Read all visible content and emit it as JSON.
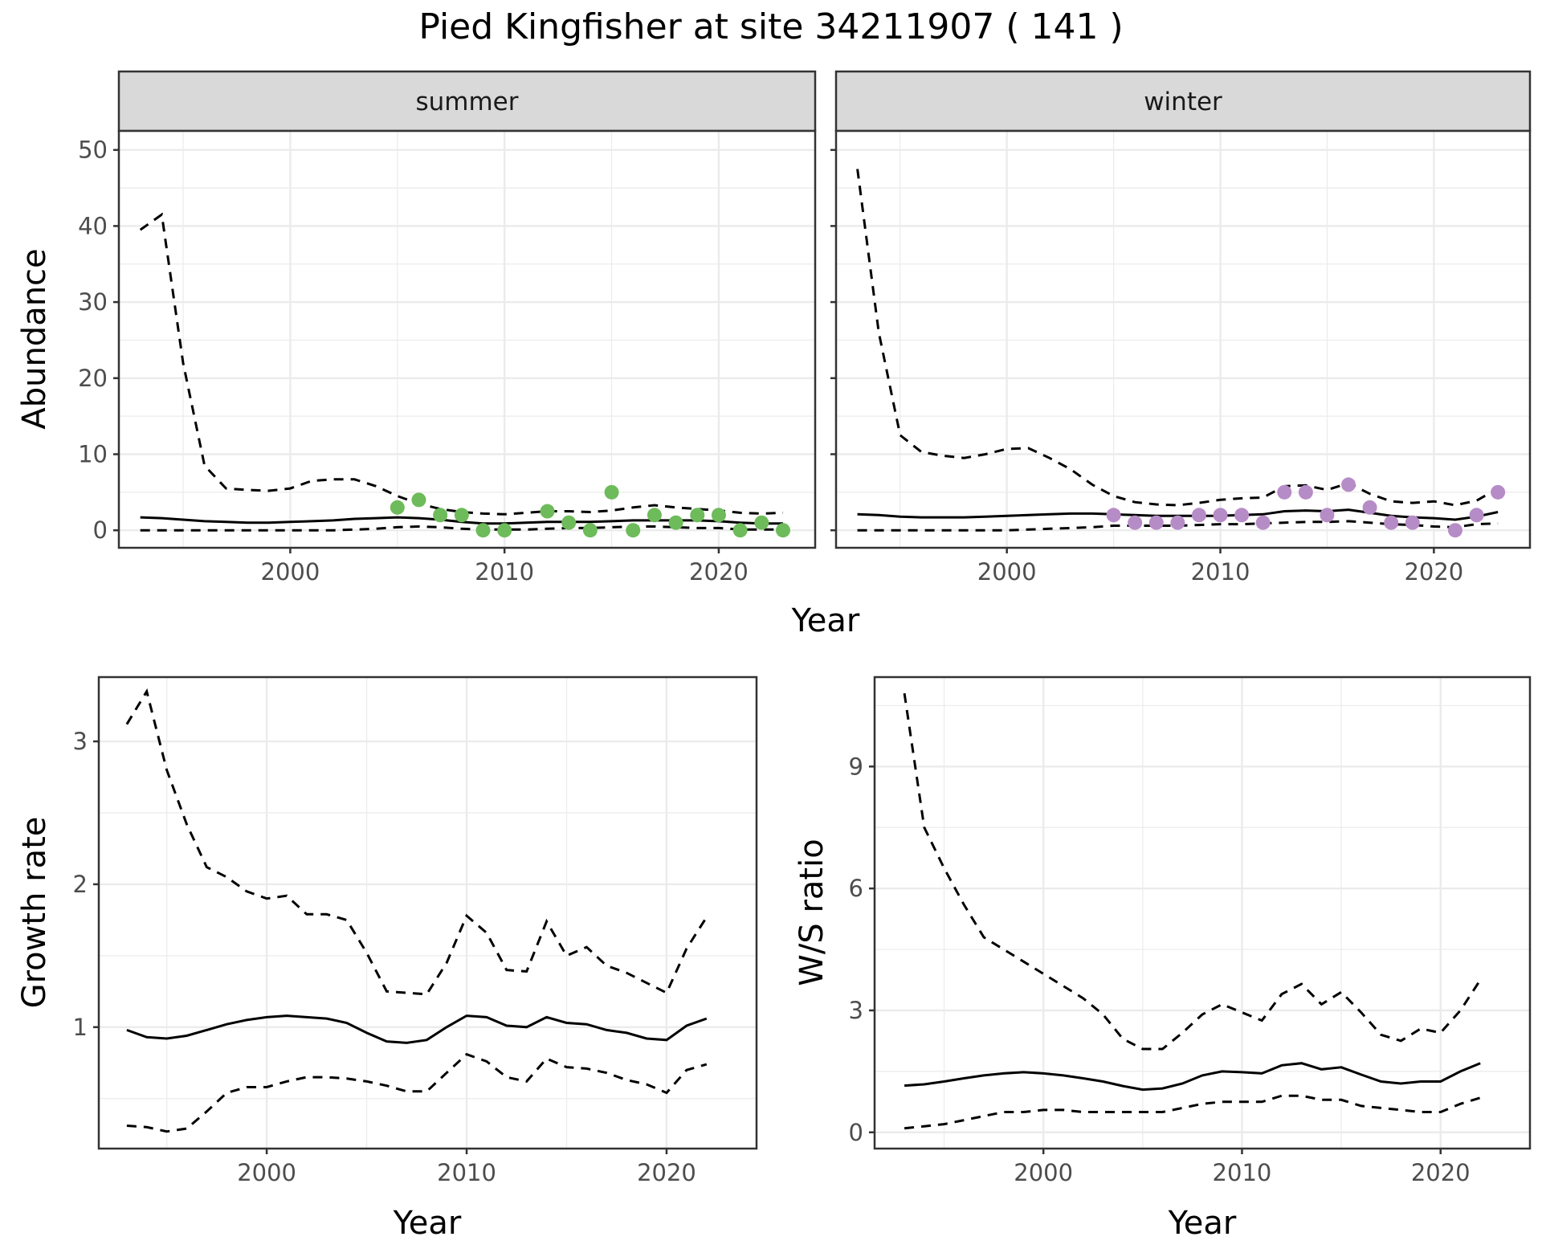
{
  "title": "Pied Kingfisher at site 34211907 ( 141 )",
  "colors": {
    "summer_points": "#6dbb5a",
    "winter_points": "#b68cc7",
    "line": "#000000",
    "grid_major": "#ebebeb",
    "strip_bg": "#d9d9d9"
  },
  "chart_data": [
    {
      "type": "line",
      "facet": "summer",
      "xlabel": "Year",
      "ylabel": "Abundance",
      "xlim": [
        1992,
        2024.5
      ],
      "ylim": [
        -2.3,
        52.5
      ],
      "xticks": [
        2000,
        2010,
        2020
      ],
      "yticks": [
        0,
        10,
        20,
        30,
        40,
        50
      ],
      "xtick_labels": [
        "2000",
        "2010",
        "2020"
      ],
      "ytick_labels": [
        "0",
        "10",
        "20",
        "30",
        "40",
        "50"
      ],
      "grid": true,
      "x": [
        1993,
        1994,
        1995,
        1996,
        1997,
        1998,
        1999,
        2000,
        2001,
        2002,
        2003,
        2004,
        2005,
        2006,
        2007,
        2008,
        2009,
        2010,
        2011,
        2012,
        2013,
        2014,
        2015,
        2016,
        2017,
        2018,
        2019,
        2020,
        2021,
        2022,
        2023
      ],
      "estimate": [
        1.7,
        1.6,
        1.4,
        1.2,
        1.1,
        1.0,
        1.0,
        1.1,
        1.2,
        1.3,
        1.5,
        1.6,
        1.7,
        1.6,
        1.4,
        1.1,
        0.9,
        0.9,
        1.0,
        1.1,
        1.1,
        1.1,
        1.2,
        1.3,
        1.3,
        1.3,
        1.3,
        1.2,
        1.0,
        0.9,
        0.9
      ],
      "upper": [
        39.5,
        41.5,
        22,
        8.5,
        5.5,
        5.3,
        5.2,
        5.5,
        6.5,
        6.7,
        6.7,
        5.8,
        4.5,
        3.5,
        2.8,
        2.4,
        2.2,
        2.1,
        2.3,
        2.5,
        2.5,
        2.4,
        2.6,
        3.0,
        3.3,
        3.0,
        2.8,
        2.6,
        2.3,
        2.2,
        2.3
      ],
      "lower": [
        0,
        0,
        0,
        0,
        0,
        0,
        0,
        0,
        0,
        0,
        0.1,
        0.2,
        0.4,
        0.5,
        0.4,
        0.2,
        0.1,
        0.1,
        0.1,
        0.2,
        0.3,
        0.3,
        0.4,
        0.5,
        0.5,
        0.4,
        0.3,
        0.3,
        0.1,
        0.1,
        0.1
      ],
      "observed": {
        "x": [
          2005,
          2006,
          2007,
          2008,
          2009,
          2010,
          2012,
          2013,
          2014,
          2015,
          2016,
          2017,
          2018,
          2019,
          2020,
          2021,
          2022,
          2023
        ],
        "y": [
          3,
          4,
          2,
          2,
          0,
          0,
          2.5,
          1,
          0,
          5,
          0,
          2,
          1,
          2,
          2,
          0,
          1,
          0
        ]
      }
    },
    {
      "type": "line",
      "facet": "winter",
      "xlabel": "Year",
      "ylabel": "Abundance",
      "xlim": [
        1992,
        2024.5
      ],
      "ylim": [
        -2.3,
        52.5
      ],
      "xticks": [
        2000,
        2010,
        2020
      ],
      "yticks": [
        0,
        10,
        20,
        30,
        40,
        50
      ],
      "xtick_labels": [
        "2000",
        "2010",
        "2020"
      ],
      "grid": true,
      "x": [
        1993,
        1994,
        1995,
        1996,
        1997,
        1998,
        1999,
        2000,
        2001,
        2002,
        2003,
        2004,
        2005,
        2006,
        2007,
        2008,
        2009,
        2010,
        2011,
        2012,
        2013,
        2014,
        2015,
        2016,
        2017,
        2018,
        2019,
        2020,
        2021,
        2022,
        2023
      ],
      "estimate": [
        2.1,
        2.0,
        1.8,
        1.7,
        1.7,
        1.7,
        1.8,
        1.9,
        2.0,
        2.1,
        2.2,
        2.2,
        2.1,
        2.0,
        1.9,
        1.9,
        1.9,
        1.9,
        2.0,
        2.1,
        2.5,
        2.6,
        2.5,
        2.7,
        2.3,
        1.9,
        1.7,
        1.6,
        1.4,
        1.8,
        2.4
      ],
      "upper": [
        47.5,
        26,
        12.5,
        10.3,
        9.8,
        9.5,
        10.0,
        10.7,
        10.8,
        9.5,
        8.0,
        6.0,
        4.5,
        3.7,
        3.4,
        3.3,
        3.6,
        4.0,
        4.2,
        4.3,
        5.8,
        5.9,
        5.3,
        6.2,
        4.8,
        3.8,
        3.6,
        3.8,
        3.3,
        3.9,
        5.5
      ],
      "lower": [
        0,
        0,
        0,
        0,
        0,
        0,
        0,
        0,
        0.1,
        0.2,
        0.3,
        0.4,
        0.6,
        0.6,
        0.6,
        0.6,
        0.7,
        0.8,
        0.8,
        0.9,
        1.0,
        1.1,
        1.1,
        1.2,
        1.0,
        0.8,
        0.7,
        0.5,
        0.4,
        0.8,
        0.9
      ],
      "observed": {
        "x": [
          2005,
          2006,
          2007,
          2008,
          2009,
          2010,
          2011,
          2012,
          2013,
          2014,
          2015,
          2016,
          2017,
          2018,
          2019,
          2021,
          2022,
          2023
        ],
        "y": [
          2,
          1,
          1,
          1,
          2,
          2,
          2,
          1,
          5,
          5,
          2,
          6,
          3,
          1,
          1,
          0,
          2,
          5
        ]
      }
    },
    {
      "type": "line",
      "xlabel": "Year",
      "ylabel": "Growth rate",
      "xlim": [
        1991.6,
        2024.5
      ],
      "ylim": [
        0.15,
        3.45
      ],
      "xticks": [
        2000,
        2010,
        2020
      ],
      "yticks": [
        1,
        2,
        3
      ],
      "xtick_labels": [
        "2000",
        "2010",
        "2020"
      ],
      "ytick_labels": [
        "1",
        "2",
        "3"
      ],
      "grid": true,
      "x": [
        1993,
        1994,
        1995,
        1996,
        1997,
        1998,
        1999,
        2000,
        2001,
        2002,
        2003,
        2004,
        2005,
        2006,
        2007,
        2008,
        2009,
        2010,
        2011,
        2012,
        2013,
        2014,
        2015,
        2016,
        2017,
        2018,
        2019,
        2020,
        2021,
        2022
      ],
      "estimate": [
        0.98,
        0.93,
        0.92,
        0.94,
        0.98,
        1.02,
        1.05,
        1.07,
        1.08,
        1.07,
        1.06,
        1.03,
        0.96,
        0.9,
        0.89,
        0.91,
        1.0,
        1.08,
        1.07,
        1.01,
        1.0,
        1.07,
        1.03,
        1.02,
        0.98,
        0.96,
        0.92,
        0.91,
        1.01,
        1.06
      ],
      "upper": [
        3.12,
        3.35,
        2.8,
        2.42,
        2.12,
        2.05,
        1.95,
        1.9,
        1.92,
        1.79,
        1.79,
        1.75,
        1.52,
        1.25,
        1.24,
        1.23,
        1.45,
        1.78,
        1.66,
        1.4,
        1.39,
        1.74,
        1.5,
        1.56,
        1.43,
        1.38,
        1.31,
        1.24,
        1.55,
        1.77
      ],
      "lower": [
        0.31,
        0.3,
        0.27,
        0.29,
        0.41,
        0.54,
        0.58,
        0.58,
        0.62,
        0.65,
        0.65,
        0.64,
        0.62,
        0.59,
        0.55,
        0.55,
        0.68,
        0.81,
        0.76,
        0.65,
        0.62,
        0.78,
        0.72,
        0.71,
        0.68,
        0.63,
        0.6,
        0.54,
        0.7,
        0.74
      ]
    },
    {
      "type": "line",
      "xlabel": "Year",
      "ylabel": "W/S ratio",
      "xlim": [
        1991.5,
        2024.5
      ],
      "ylim": [
        -0.4,
        11.2
      ],
      "xticks": [
        2000,
        2010,
        2020
      ],
      "yticks": [
        0,
        3,
        6,
        9
      ],
      "xtick_labels": [
        "2000",
        "2010",
        "2020"
      ],
      "ytick_labels": [
        "0",
        "3",
        "6",
        "9"
      ],
      "grid": true,
      "x": [
        1993,
        1994,
        1995,
        1996,
        1997,
        1998,
        1999,
        2000,
        2001,
        2002,
        2003,
        2004,
        2005,
        2006,
        2007,
        2008,
        2009,
        2010,
        2011,
        2012,
        2013,
        2014,
        2015,
        2016,
        2017,
        2018,
        2019,
        2020,
        2021,
        2022
      ],
      "estimate": [
        1.15,
        1.18,
        1.25,
        1.33,
        1.4,
        1.45,
        1.48,
        1.45,
        1.4,
        1.33,
        1.25,
        1.14,
        1.05,
        1.08,
        1.2,
        1.4,
        1.5,
        1.48,
        1.45,
        1.65,
        1.7,
        1.55,
        1.6,
        1.42,
        1.25,
        1.2,
        1.25,
        1.25,
        1.5,
        1.7
      ],
      "upper": [
        10.8,
        7.5,
        6.5,
        5.6,
        4.8,
        4.5,
        4.2,
        3.9,
        3.6,
        3.3,
        2.9,
        2.3,
        2.05,
        2.05,
        2.45,
        2.9,
        3.15,
        2.95,
        2.75,
        3.4,
        3.65,
        3.15,
        3.45,
        2.95,
        2.4,
        2.25,
        2.55,
        2.45,
        3.0,
        3.75
      ],
      "lower": [
        0.1,
        0.15,
        0.2,
        0.3,
        0.4,
        0.5,
        0.5,
        0.55,
        0.55,
        0.5,
        0.5,
        0.5,
        0.5,
        0.5,
        0.6,
        0.7,
        0.75,
        0.75,
        0.75,
        0.9,
        0.9,
        0.8,
        0.8,
        0.65,
        0.6,
        0.55,
        0.5,
        0.5,
        0.7,
        0.85
      ]
    }
  ]
}
